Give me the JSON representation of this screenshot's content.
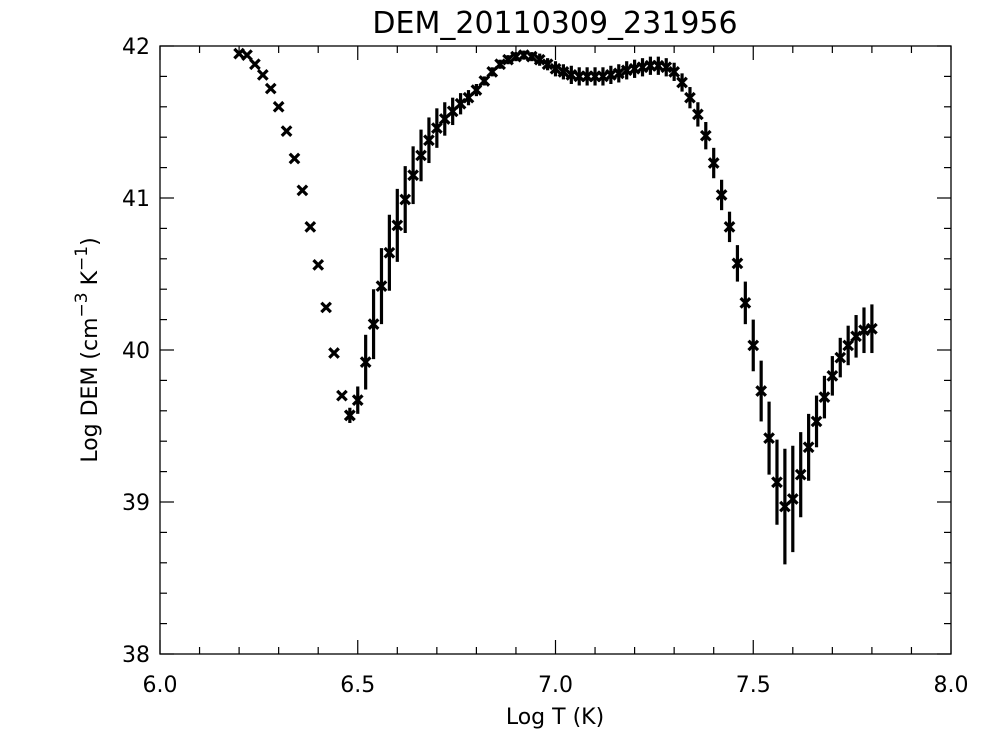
{
  "chart_data": {
    "type": "scatter",
    "title": "DEM_20110309_231956",
    "xlabel": "Log T (K)",
    "ylabel_prefix": "Log DEM (cm",
    "ylabel_exp1": "−3",
    "ylabel_mid": " K",
    "ylabel_exp2": "−1",
    "ylabel_suffix": ")",
    "xlim": [
      6.0,
      8.0
    ],
    "ylim": [
      38.0,
      42.0
    ],
    "xticks": [
      6.0,
      6.5,
      7.0,
      7.5,
      8.0
    ],
    "xtick_labels": [
      "6.0",
      "6.5",
      "7.0",
      "7.5",
      "8.0"
    ],
    "yticks": [
      38,
      39,
      40,
      41,
      42
    ],
    "ytick_labels": [
      "38",
      "39",
      "40",
      "41",
      "42"
    ],
    "grid": false,
    "series": [
      {
        "marker": "x",
        "color": "#000000",
        "points": [
          {
            "x": 6.2,
            "y": 41.95
          },
          {
            "x": 6.22,
            "y": 41.94
          },
          {
            "x": 6.24,
            "y": 41.88
          },
          {
            "x": 6.26,
            "y": 41.81
          },
          {
            "x": 6.28,
            "y": 41.72
          },
          {
            "x": 6.3,
            "y": 41.6
          },
          {
            "x": 6.32,
            "y": 41.44
          },
          {
            "x": 6.34,
            "y": 41.26
          },
          {
            "x": 6.36,
            "y": 41.05
          },
          {
            "x": 6.38,
            "y": 40.81
          },
          {
            "x": 6.4,
            "y": 40.56
          },
          {
            "x": 6.42,
            "y": 40.28
          },
          {
            "x": 6.44,
            "y": 39.98
          },
          {
            "x": 6.46,
            "y": 39.7
          },
          {
            "x": 6.48,
            "y": 39.57
          }
        ]
      },
      {
        "marker": "x",
        "color": "#000000",
        "points": [
          {
            "x": 6.48,
            "y": 39.57,
            "err": 0.05
          },
          {
            "x": 6.5,
            "y": 39.67,
            "err": 0.09
          },
          {
            "x": 6.52,
            "y": 39.92,
            "err": 0.18
          },
          {
            "x": 6.54,
            "y": 40.17,
            "err": 0.23
          },
          {
            "x": 6.56,
            "y": 40.42,
            "err": 0.25
          },
          {
            "x": 6.58,
            "y": 40.64,
            "err": 0.25
          },
          {
            "x": 6.6,
            "y": 40.82,
            "err": 0.24
          },
          {
            "x": 6.62,
            "y": 40.99,
            "err": 0.22
          },
          {
            "x": 6.64,
            "y": 41.15,
            "err": 0.19
          },
          {
            "x": 6.66,
            "y": 41.28,
            "err": 0.17
          },
          {
            "x": 6.68,
            "y": 41.38,
            "err": 0.15
          },
          {
            "x": 6.7,
            "y": 41.46,
            "err": 0.13
          },
          {
            "x": 6.72,
            "y": 41.52,
            "err": 0.11
          },
          {
            "x": 6.74,
            "y": 41.57,
            "err": 0.09
          },
          {
            "x": 6.76,
            "y": 41.62,
            "err": 0.07
          },
          {
            "x": 6.78,
            "y": 41.66,
            "err": 0.05
          },
          {
            "x": 6.8,
            "y": 41.71,
            "err": 0.04
          },
          {
            "x": 6.82,
            "y": 41.77,
            "err": 0.03
          },
          {
            "x": 6.84,
            "y": 41.83,
            "err": 0.03
          },
          {
            "x": 6.86,
            "y": 41.88,
            "err": 0.03
          },
          {
            "x": 6.88,
            "y": 41.91,
            "err": 0.03
          },
          {
            "x": 6.9,
            "y": 41.93,
            "err": 0.03
          },
          {
            "x": 6.92,
            "y": 41.94,
            "err": 0.03
          },
          {
            "x": 6.94,
            "y": 41.93,
            "err": 0.03
          },
          {
            "x": 6.96,
            "y": 41.91,
            "err": 0.04
          },
          {
            "x": 6.98,
            "y": 41.88,
            "err": 0.04
          },
          {
            "x": 7.0,
            "y": 41.85,
            "err": 0.05
          },
          {
            "x": 7.02,
            "y": 41.83,
            "err": 0.05
          },
          {
            "x": 7.04,
            "y": 41.81,
            "err": 0.06
          },
          {
            "x": 7.06,
            "y": 41.8,
            "err": 0.06
          },
          {
            "x": 7.08,
            "y": 41.8,
            "err": 0.06
          },
          {
            "x": 7.1,
            "y": 41.8,
            "err": 0.06
          },
          {
            "x": 7.12,
            "y": 41.8,
            "err": 0.06
          },
          {
            "x": 7.14,
            "y": 41.81,
            "err": 0.06
          },
          {
            "x": 7.16,
            "y": 41.82,
            "err": 0.06
          },
          {
            "x": 7.18,
            "y": 41.84,
            "err": 0.06
          },
          {
            "x": 7.2,
            "y": 41.85,
            "err": 0.06
          },
          {
            "x": 7.22,
            "y": 41.86,
            "err": 0.06
          },
          {
            "x": 7.24,
            "y": 41.87,
            "err": 0.06
          },
          {
            "x": 7.26,
            "y": 41.87,
            "err": 0.06
          },
          {
            "x": 7.28,
            "y": 41.86,
            "err": 0.06
          },
          {
            "x": 7.3,
            "y": 41.83,
            "err": 0.06
          },
          {
            "x": 7.32,
            "y": 41.76,
            "err": 0.06
          },
          {
            "x": 7.34,
            "y": 41.66,
            "err": 0.07
          },
          {
            "x": 7.36,
            "y": 41.55,
            "err": 0.08
          },
          {
            "x": 7.38,
            "y": 41.41,
            "err": 0.09
          },
          {
            "x": 7.4,
            "y": 41.23,
            "err": 0.1
          },
          {
            "x": 7.42,
            "y": 41.02,
            "err": 0.1
          },
          {
            "x": 7.44,
            "y": 40.81,
            "err": 0.1
          },
          {
            "x": 7.46,
            "y": 40.57,
            "err": 0.12
          },
          {
            "x": 7.48,
            "y": 40.31,
            "err": 0.14
          },
          {
            "x": 7.5,
            "y": 40.03,
            "err": 0.17
          },
          {
            "x": 7.52,
            "y": 39.73,
            "err": 0.2
          },
          {
            "x": 7.54,
            "y": 39.42,
            "err": 0.24
          },
          {
            "x": 7.56,
            "y": 39.13,
            "err": 0.28
          },
          {
            "x": 7.58,
            "y": 38.97,
            "err": 0.38
          },
          {
            "x": 7.6,
            "y": 39.02,
            "err": 0.35
          },
          {
            "x": 7.62,
            "y": 39.18,
            "err": 0.28
          },
          {
            "x": 7.64,
            "y": 39.36,
            "err": 0.22
          },
          {
            "x": 7.66,
            "y": 39.53,
            "err": 0.17
          },
          {
            "x": 7.68,
            "y": 39.69,
            "err": 0.14
          },
          {
            "x": 7.7,
            "y": 39.83,
            "err": 0.13
          },
          {
            "x": 7.72,
            "y": 39.95,
            "err": 0.13
          },
          {
            "x": 7.74,
            "y": 40.03,
            "err": 0.13
          },
          {
            "x": 7.76,
            "y": 40.09,
            "err": 0.14
          },
          {
            "x": 7.78,
            "y": 40.13,
            "err": 0.15
          },
          {
            "x": 7.8,
            "y": 40.14,
            "err": 0.16
          }
        ]
      }
    ]
  }
}
